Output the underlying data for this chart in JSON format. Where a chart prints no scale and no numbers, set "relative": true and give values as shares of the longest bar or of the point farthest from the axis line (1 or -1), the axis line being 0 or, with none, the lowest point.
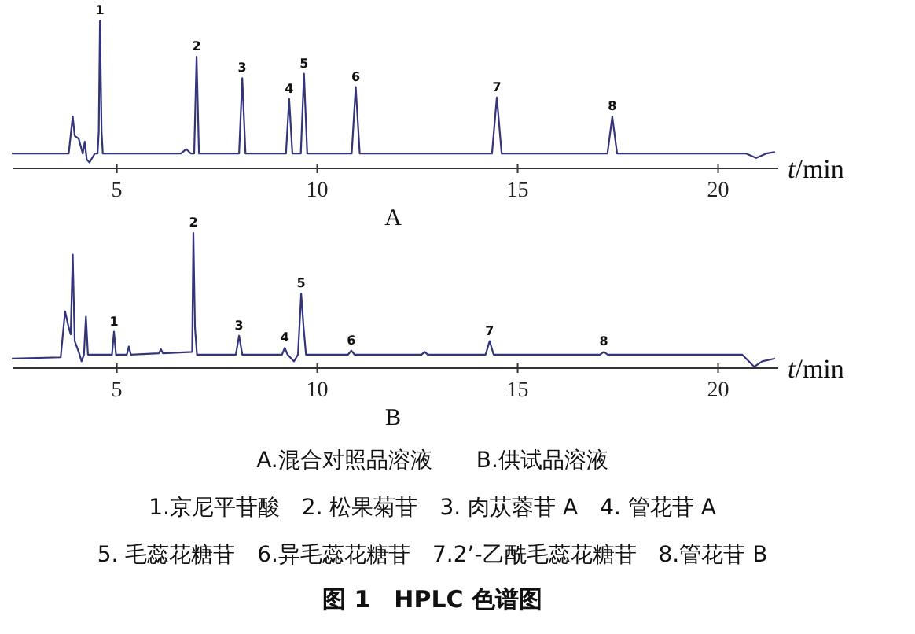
{
  "chart_data": [
    {
      "type": "line",
      "relative": true,
      "color": "#34347a",
      "xlim": [
        2.4,
        21.5
      ],
      "xticks": [
        5,
        10,
        15,
        20
      ],
      "xlabel": "*t*/min",
      "x": [
        2.4,
        3.8,
        3.9,
        3.95,
        4.05,
        4.1,
        4.15,
        4.2,
        4.25,
        4.32,
        4.45,
        4.52,
        4.55,
        4.58,
        4.62,
        4.65,
        6.6,
        6.73,
        6.85,
        6.93,
        6.99,
        7.05,
        8.05,
        8.13,
        8.21,
        9.22,
        9.3,
        9.38,
        9.59,
        9.67,
        9.75,
        10.86,
        10.96,
        11.06,
        14.36,
        14.48,
        14.6,
        17.24,
        17.36,
        17.48,
        20.7,
        20.95,
        21.2,
        21.4
      ],
      "values": [
        0.1,
        0.1,
        0.35,
        0.22,
        0.2,
        0.15,
        0.1,
        0.18,
        0.06,
        0.04,
        0.1,
        0.1,
        0.25,
        1.0,
        0.25,
        0.1,
        0.1,
        0.13,
        0.1,
        0.1,
        0.755,
        0.1,
        0.1,
        0.61,
        0.1,
        0.1,
        0.47,
        0.1,
        0.1,
        0.64,
        0.1,
        0.1,
        0.55,
        0.1,
        0.1,
        0.48,
        0.1,
        0.1,
        0.35,
        0.1,
        0.1,
        0.07,
        0.1,
        0.11
      ],
      "annotations": [
        {
          "text": "1",
          "x": 4.58,
          "y": 1.0
        },
        {
          "text": "2",
          "x": 6.99,
          "y": 0.755
        },
        {
          "text": "3",
          "x": 8.13,
          "y": 0.61
        },
        {
          "text": "4",
          "x": 9.3,
          "y": 0.47
        },
        {
          "text": "5",
          "x": 9.67,
          "y": 0.64
        },
        {
          "text": "6",
          "x": 10.96,
          "y": 0.55
        },
        {
          "text": "7",
          "x": 14.48,
          "y": 0.48
        },
        {
          "text": "8",
          "x": 17.36,
          "y": 0.35
        },
        "A"
      ]
    },
    {
      "type": "line",
      "relative": true,
      "color": "#34347a",
      "xlim": [
        2.4,
        21.5
      ],
      "xticks": [
        5,
        10,
        15,
        20
      ],
      "xlabel": "*t*/min",
      "x": [
        2.4,
        3.6,
        3.71,
        3.8,
        3.85,
        3.9,
        3.95,
        4.05,
        4.12,
        4.18,
        4.23,
        4.28,
        4.6,
        4.88,
        4.93,
        4.98,
        5.25,
        5.3,
        5.35,
        6.05,
        6.1,
        6.15,
        6.88,
        6.91,
        6.95,
        7.0,
        7.97,
        8.05,
        8.13,
        9.12,
        9.19,
        9.26,
        9.42,
        9.52,
        9.6,
        9.66,
        9.72,
        10.77,
        10.85,
        10.93,
        12.6,
        12.68,
        12.76,
        14.2,
        14.3,
        14.4,
        17.05,
        17.15,
        17.25,
        20.6,
        20.9,
        21.1,
        21.4
      ],
      "values": [
        0.07,
        0.08,
        0.42,
        0.3,
        0.25,
        0.84,
        0.2,
        0.12,
        0.05,
        0.1,
        0.38,
        0.1,
        0.1,
        0.1,
        0.27,
        0.1,
        0.1,
        0.16,
        0.1,
        0.11,
        0.14,
        0.11,
        0.12,
        1.0,
        0.3,
        0.1,
        0.1,
        0.24,
        0.1,
        0.1,
        0.15,
        0.1,
        0.05,
        0.1,
        0.55,
        0.3,
        0.1,
        0.1,
        0.13,
        0.1,
        0.1,
        0.12,
        0.1,
        0.1,
        0.2,
        0.1,
        0.1,
        0.12,
        0.1,
        0.1,
        0.01,
        0.05,
        0.07
      ],
      "annotations": [
        {
          "text": "1",
          "x": 4.93,
          "y": 0.27
        },
        {
          "text": "2",
          "x": 6.91,
          "y": 1.0
        },
        {
          "text": "3",
          "x": 8.05,
          "y": 0.24
        },
        {
          "text": "4",
          "x": 9.19,
          "y": 0.15
        },
        {
          "text": "5",
          "x": 9.6,
          "y": 0.55
        },
        {
          "text": "6",
          "x": 10.85,
          "y": 0.13
        },
        {
          "text": "7",
          "x": 14.3,
          "y": 0.2
        },
        {
          "text": "8",
          "x": 17.15,
          "y": 0.12
        },
        "B",
        "A.混合对照品溶液　　B.供试品溶液",
        "1.京尼平苷酸　2. 松果菊苷　3. 肉苁蓉苷 A　4. 管花苷 A",
        "5. 毛蕊花糖苷　6.异毛蕊花糖苷　7.2’-乙酰毛蕊花糖苷　8.管花苷 B",
        "图 1　HPLC 色谱图"
      ]
    }
  ]
}
